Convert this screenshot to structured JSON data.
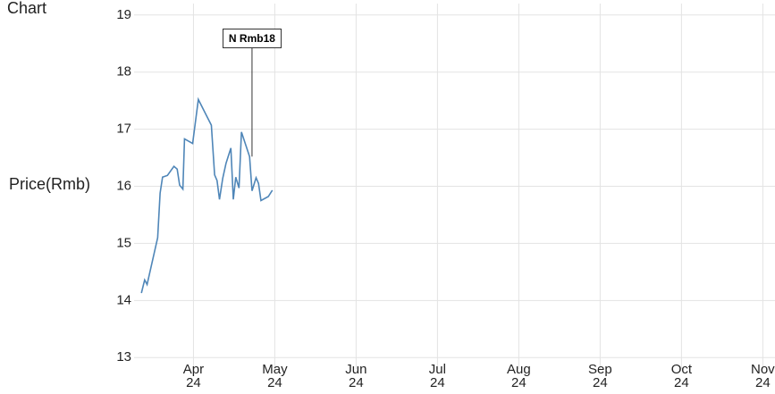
{
  "chart_data": {
    "type": "line",
    "title": "Chart",
    "y_label": "Price(Rmb)",
    "x": [
      3.36,
      3.4,
      3.43,
      3.56,
      3.59,
      3.62,
      3.68,
      3.76,
      3.8,
      3.83,
      3.87,
      3.89,
      3.99,
      4.06,
      4.22,
      4.26,
      4.29,
      4.32,
      4.36,
      4.4,
      4.46,
      4.49,
      4.52,
      4.56,
      4.59,
      4.69,
      4.72,
      4.77,
      4.8,
      4.83,
      4.92,
      4.97
    ],
    "series": [
      {
        "name": "Price",
        "color": "#4f86b8",
        "values": [
          14.13,
          14.36,
          14.28,
          15.1,
          15.88,
          16.16,
          16.19,
          16.35,
          16.3,
          16.02,
          15.95,
          16.83,
          16.75,
          17.52,
          17.07,
          16.2,
          16.1,
          15.77,
          16.14,
          16.4,
          16.67,
          15.77,
          16.16,
          15.97,
          16.95,
          16.52,
          15.92,
          16.15,
          16.05,
          15.75,
          15.82,
          15.93
        ]
      }
    ],
    "xlim": [
      3.27,
      11.15
    ],
    "xticks": [
      {
        "value": 4,
        "label": "Apr\n24"
      },
      {
        "value": 5,
        "label": "May\n24"
      },
      {
        "value": 6,
        "label": "Jun\n24"
      },
      {
        "value": 7,
        "label": "Jul\n24"
      },
      {
        "value": 8,
        "label": "Aug\n24"
      },
      {
        "value": 9,
        "label": "Sep\n24"
      },
      {
        "value": 10,
        "label": "Oct\n24"
      },
      {
        "value": 11,
        "label": "Nov\n24"
      }
    ],
    "ylim": [
      12.8,
      19.2
    ],
    "yticks": [
      13,
      14,
      15,
      16,
      17,
      18,
      19
    ],
    "grid": true,
    "annotations": [
      {
        "text": "N Rmb18",
        "x": 4.72,
        "y": 16.52
      }
    ]
  }
}
